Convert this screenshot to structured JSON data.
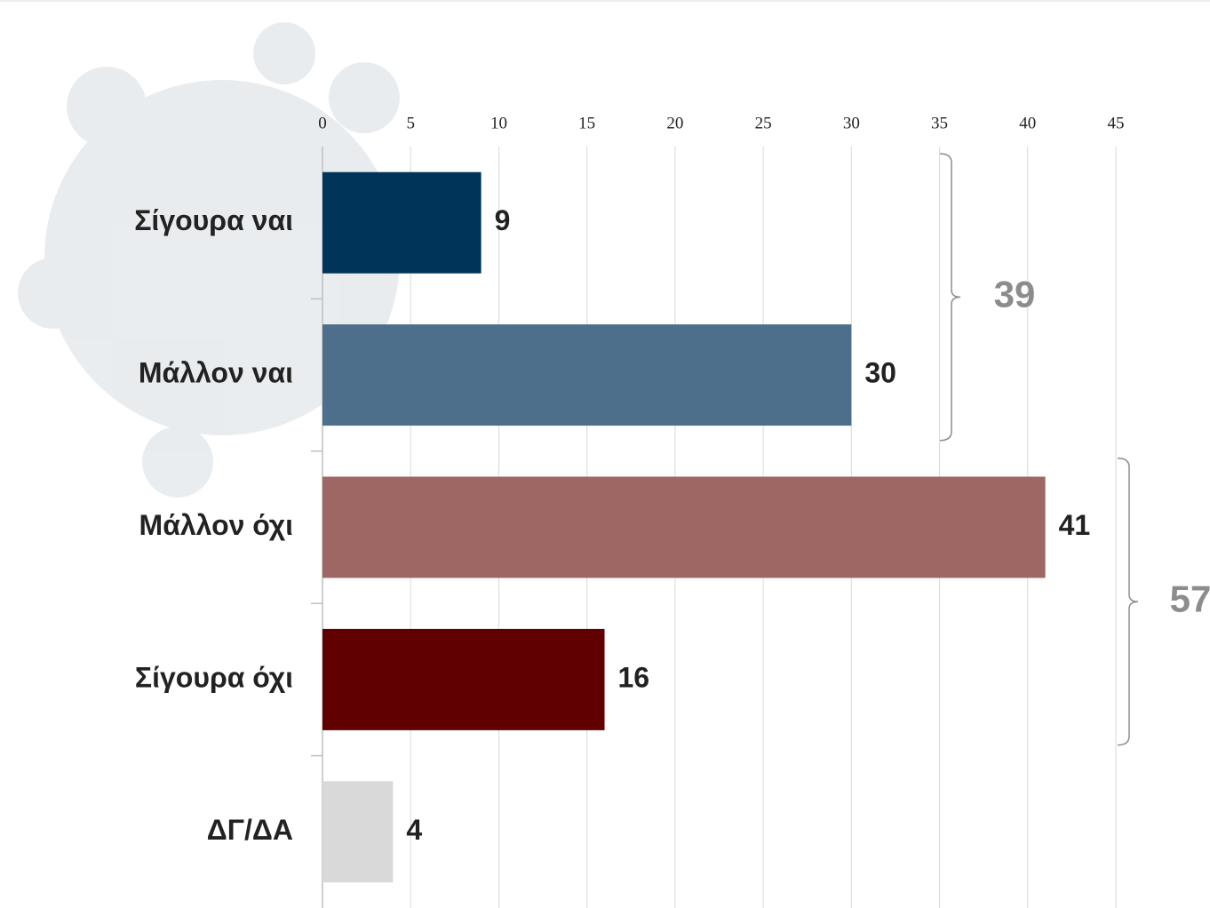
{
  "chart_data": {
    "type": "bar",
    "orientation": "horizontal",
    "categories": [
      "Σίγουρα ναι",
      "Μάλλον ναι",
      "Μάλλον όχι",
      "Σίγουρα όχι",
      "ΔΓ/ΔΑ"
    ],
    "values": [
      9,
      30,
      41,
      16,
      4
    ],
    "colors": [
      "#003459",
      "#4d6f8c",
      "#9e6763",
      "#600000",
      "#d9d9d9"
    ],
    "xlim": [
      0,
      45
    ],
    "xticks": [
      0,
      5,
      10,
      15,
      20,
      25,
      30,
      35,
      40,
      45
    ],
    "grid": true,
    "annotations": [
      39,
      57
    ]
  }
}
